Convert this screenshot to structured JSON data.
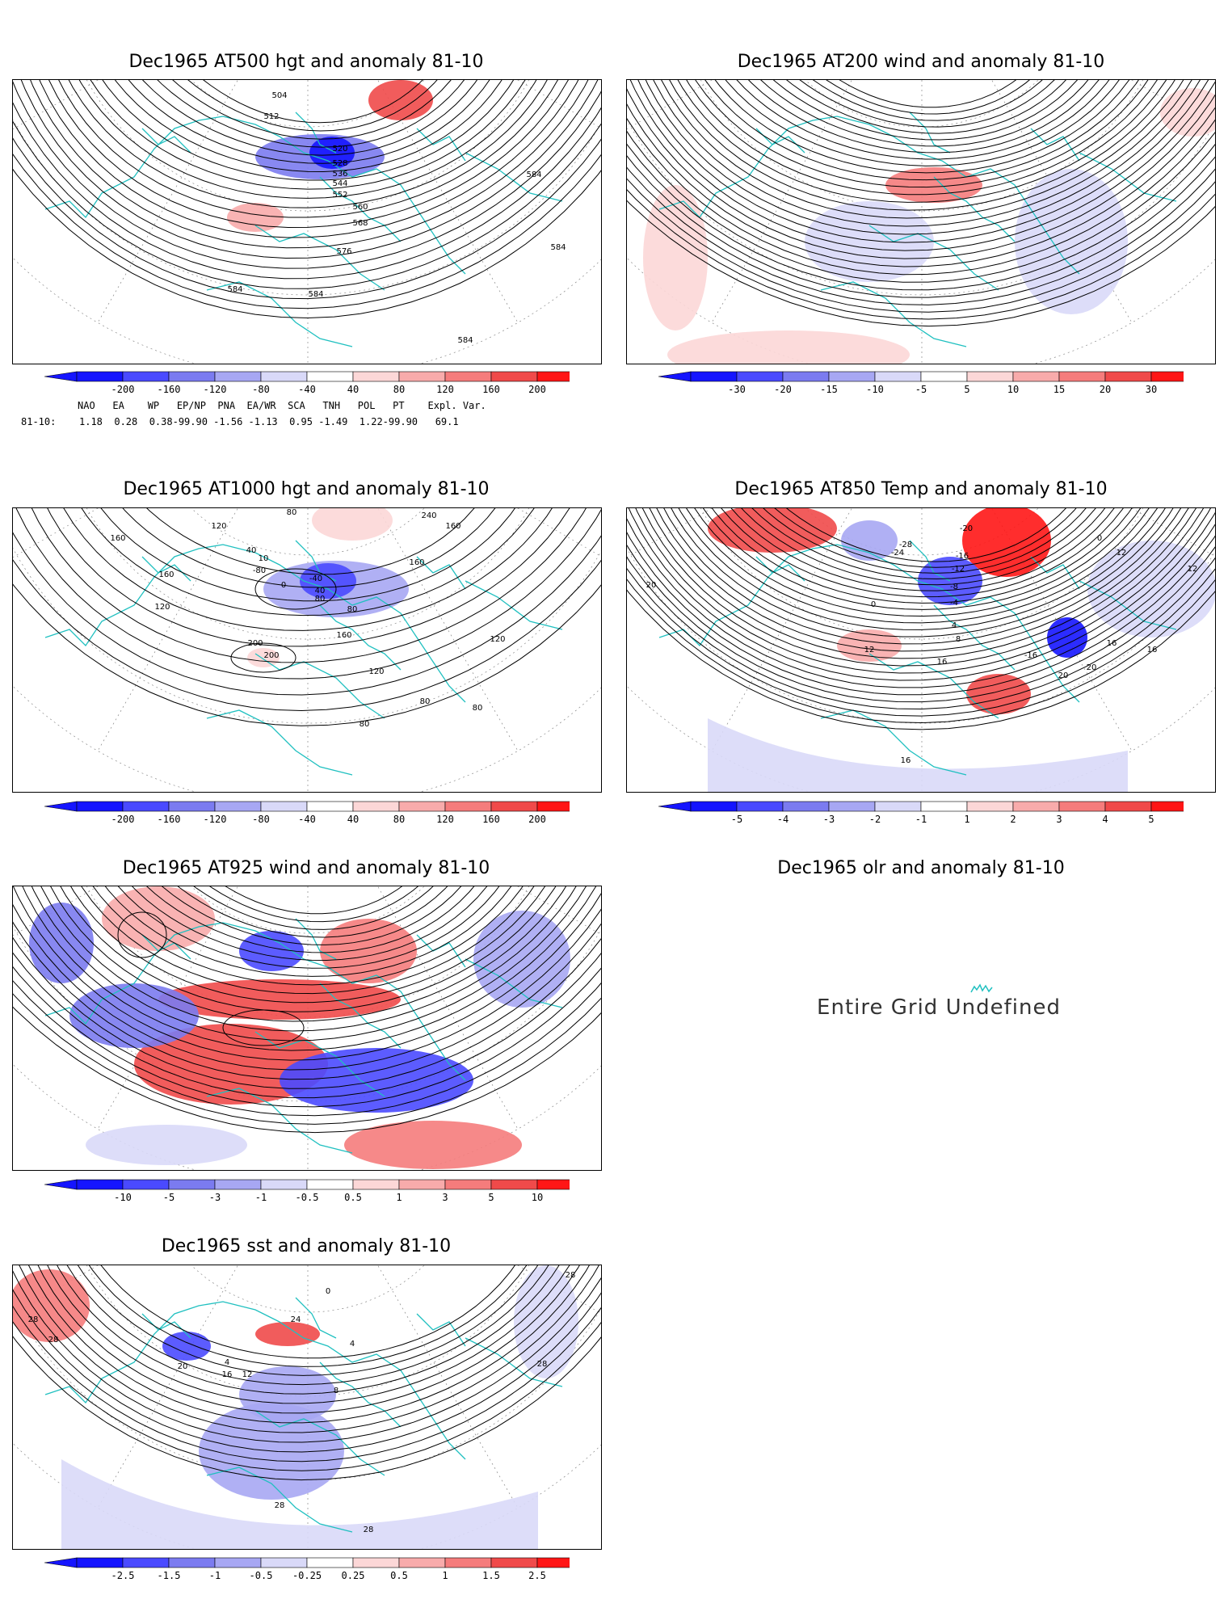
{
  "panels": [
    {
      "id": "p500",
      "title": "Dec1965 AT500 hgt and anomaly 81-10",
      "contour_labels": [
        "504",
        "512",
        "520",
        "528",
        "536",
        "544",
        "552",
        "560",
        "568",
        "576",
        "584",
        "584",
        "584",
        "584",
        "584"
      ],
      "colorbar": [
        "-200",
        "-160",
        "-120",
        "-80",
        "-40",
        "40",
        "80",
        "120",
        "160",
        "200"
      ]
    },
    {
      "id": "p200",
      "title": "Dec1965 AT200 wind and anomaly 81-10",
      "contour_labels": [],
      "colorbar": [
        "-30",
        "-20",
        "-15",
        "-10",
        "-5",
        "5",
        "10",
        "15",
        "20",
        "30"
      ]
    },
    {
      "id": "p1000",
      "title": "Dec1965 AT1000 hgt and anomaly 81-10",
      "contour_labels": [
        "80",
        "120",
        "160",
        "40",
        "10",
        "-80",
        "-40",
        "0",
        "40",
        "80",
        "160",
        "200",
        "240",
        "160",
        "120",
        "80",
        "120",
        "160",
        "80",
        "80",
        "200",
        "160",
        "120",
        "80"
      ],
      "colorbar": [
        "-200",
        "-160",
        "-120",
        "-80",
        "-40",
        "40",
        "80",
        "120",
        "160",
        "200"
      ]
    },
    {
      "id": "p850",
      "title": "Dec1965 AT850 Temp and anomaly 81-10",
      "contour_labels": [
        "-20",
        "-28",
        "-24",
        "-16",
        "-12",
        "-8",
        "-4",
        "0",
        "4",
        "8",
        "12",
        "16",
        "20",
        "-16",
        "16",
        "12",
        "16",
        "20",
        "20",
        "16",
        "0",
        "12"
      ],
      "colorbar": [
        "-5",
        "-4",
        "-3",
        "-2",
        "-1",
        "1",
        "2",
        "3",
        "4",
        "5"
      ]
    },
    {
      "id": "p925",
      "title": "Dec1965 AT925 wind and anomaly 81-10",
      "contour_labels": [],
      "colorbar": [
        "-10",
        "-5",
        "-3",
        "-1",
        "-0.5",
        "0.5",
        "1",
        "3",
        "5",
        "10"
      ]
    },
    {
      "id": "polr",
      "title": "Dec1965 olr and anomaly 81-10",
      "message": "Entire Grid Undefined"
    },
    {
      "id": "psst",
      "title": "Dec1965 sst and anomaly 81-10",
      "contour_labels": [
        "28",
        "28",
        "20",
        "16",
        "12",
        "4",
        "8",
        "4",
        "0",
        "24",
        "28",
        "28",
        "28",
        "28"
      ],
      "colorbar": [
        "-2.5",
        "-1.5",
        "-1",
        "-0.5",
        "-0.25",
        "0.25",
        "0.5",
        "1",
        "1.5",
        "2.5"
      ]
    }
  ],
  "indices": {
    "header": "NAO   EA    WP   EP/NP  PNA  EA/WR  SCA   TNH   POL   PT    Expl. Var.",
    "row_label": "81-10:",
    "row_values": "1.18  0.28  0.38-99.90 -1.56 -1.13  0.95 -1.49  1.22-99.90   69.1"
  },
  "colors": {
    "land_outline": "#20c0c0",
    "contour": "#000000",
    "neg_scale": [
      "#1515ff",
      "#4a4aff",
      "#7b7bf0",
      "#a7a7f3",
      "#d9d9f8"
    ],
    "pos_scale": [
      "#fcd7d7",
      "#f8abab",
      "#f57c7c",
      "#f04a4a",
      "#ff1616"
    ],
    "grid": "#888888"
  }
}
